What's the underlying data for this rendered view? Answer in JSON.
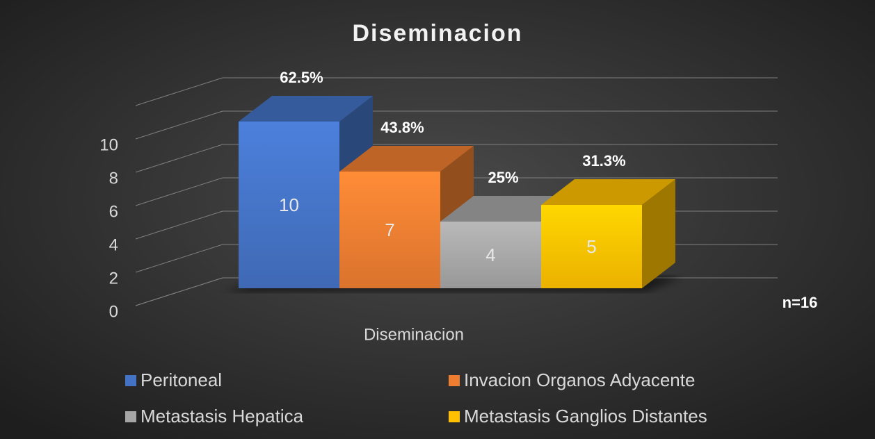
{
  "chart_data": {
    "type": "bar3d",
    "title": "Diseminacion",
    "categories": [
      "Diseminacion"
    ],
    "series": [
      {
        "name": "Peritoneal",
        "color": "#4472c4",
        "values": [
          10
        ],
        "annotation": "62.5%"
      },
      {
        "name": "Invacion Organos Adyacente",
        "color": "#ed7d31",
        "values": [
          7
        ],
        "annotation": "43.8%"
      },
      {
        "name": "Metastasis Hepatica",
        "color": "#a5a5a5",
        "values": [
          4
        ],
        "annotation": "25%"
      },
      {
        "name": "Metastasis Ganglios Distantes",
        "color": "#ffc000",
        "values": [
          5
        ],
        "annotation": "31.3%"
      }
    ],
    "ylim": [
      0,
      12
    ],
    "yticks": [
      0,
      2,
      4,
      6,
      8,
      10
    ],
    "grid": true,
    "annotation": "n=16",
    "legend": "bottom"
  }
}
